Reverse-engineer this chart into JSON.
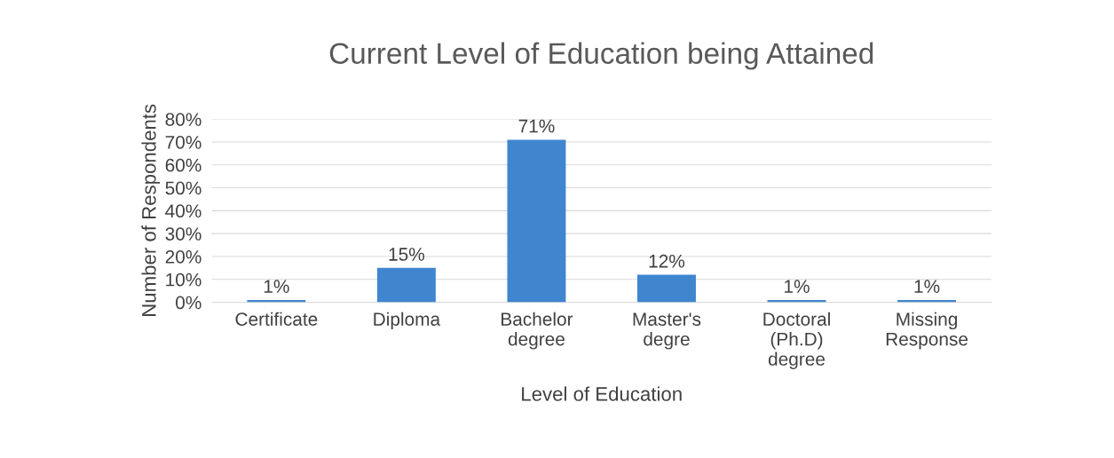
{
  "chart_data": {
    "type": "bar",
    "title": "Current Level of Education being Attained",
    "xlabel": "Level of Education",
    "ylabel": "Number of Respondents",
    "categories": [
      "Certificate",
      "Diploma",
      "Bachelor\ndegree",
      "Master's\ndegre",
      "Doctoral\n(Ph.D)\ndegree",
      "Missing\nResponse"
    ],
    "values": [
      1,
      15,
      71,
      12,
      1,
      1
    ],
    "value_labels": [
      "1%",
      "15%",
      "71%",
      "12%",
      "1%",
      "1%"
    ],
    "color": "#3f86cf",
    "ylim": [
      0,
      80
    ],
    "yticks": [
      {
        "value": 0,
        "label": "0%"
      },
      {
        "value": 10,
        "label": "10%"
      },
      {
        "value": 20,
        "label": "20%"
      },
      {
        "value": 30,
        "label": "30%"
      },
      {
        "value": 40,
        "label": "40%"
      },
      {
        "value": 50,
        "label": "50%"
      },
      {
        "value": 60,
        "label": "60%"
      },
      {
        "value": 70,
        "label": "70%"
      },
      {
        "value": 80,
        "label": "80%"
      }
    ],
    "grid": "y"
  }
}
